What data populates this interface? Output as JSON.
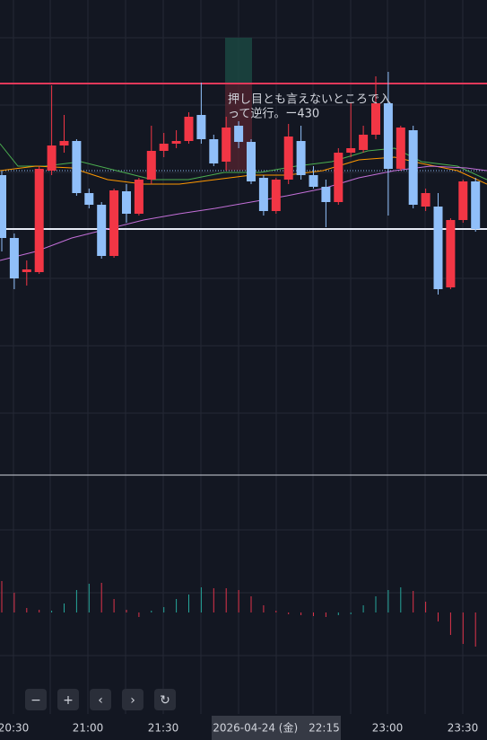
{
  "chart_data": {
    "type": "candlestick",
    "annotation": [
      "押し目とも言えないところで入",
      "って逆行。ー430"
    ],
    "up_color": "#f23645",
    "down_color": "#90bff9",
    "ylim": [
      0,
      530
    ],
    "candles": [
      [
        335,
        340,
        250,
        265
      ],
      [
        265,
        270,
        208,
        220
      ],
      [
        227,
        240,
        212,
        230
      ],
      [
        227,
        345,
        225,
        342
      ],
      [
        340,
        435,
        335,
        368
      ],
      [
        368,
        402,
        360,
        373
      ],
      [
        373,
        375,
        312,
        315
      ],
      [
        315,
        320,
        298,
        302
      ],
      [
        302,
        305,
        242,
        245
      ],
      [
        245,
        320,
        243,
        318
      ],
      [
        317,
        325,
        282,
        292
      ],
      [
        292,
        332,
        290,
        330
      ],
      [
        330,
        390,
        325,
        362
      ],
      [
        362,
        382,
        355,
        370
      ],
      [
        370,
        385,
        365,
        373
      ],
      [
        373,
        405,
        370,
        400
      ],
      [
        402,
        438,
        370,
        375
      ],
      [
        375,
        380,
        345,
        348
      ],
      [
        350,
        400,
        340,
        388
      ],
      [
        390,
        395,
        365,
        372
      ],
      [
        372,
        375,
        325,
        328
      ],
      [
        332,
        335,
        290,
        295
      ],
      [
        295,
        332,
        292,
        330
      ],
      [
        330,
        392,
        325,
        378
      ],
      [
        373,
        390,
        330,
        335
      ],
      [
        335,
        345,
        320,
        322
      ],
      [
        322,
        330,
        277,
        305
      ],
      [
        305,
        365,
        302,
        360
      ],
      [
        360,
        415,
        355,
        365
      ],
      [
        363,
        390,
        360,
        380
      ],
      [
        380,
        445,
        375,
        415
      ],
      [
        415,
        450,
        290,
        342
      ],
      [
        342,
        390,
        340,
        388
      ],
      [
        385,
        390,
        298,
        302
      ],
      [
        300,
        320,
        295,
        315
      ],
      [
        300,
        315,
        202,
        208
      ],
      [
        210,
        287,
        208,
        285
      ],
      [
        285,
        330,
        282,
        328
      ],
      [
        328,
        332,
        272,
        275
      ]
    ],
    "volume": [
      35,
      22,
      5,
      3,
      2,
      10,
      25,
      32,
      33,
      15,
      3,
      -5,
      2,
      6,
      15,
      20,
      28,
      27,
      27,
      25,
      18,
      8,
      2,
      -2,
      -3,
      -4,
      -5,
      -3,
      -2,
      8,
      18,
      25,
      28,
      24,
      12,
      -10,
      -25,
      -35,
      -38
    ],
    "volume_colors": [
      "#e0334a",
      "#e0334a",
      "#e0334a",
      "#e0334a",
      "#26a69a",
      "#26a69a",
      "#26a69a",
      "#26a69a",
      "#e0334a",
      "#e0334a",
      "#e0334a",
      "#e0334a",
      "#26a69a",
      "#26a69a",
      "#26a69a",
      "#26a69a",
      "#26a69a",
      "#e0334a",
      "#e0334a",
      "#e0334a",
      "#e0334a",
      "#e0334a",
      "#e0334a",
      "#e0334a",
      "#e0334a",
      "#e0334a",
      "#e0334a",
      "#26a69a",
      "#26a69a",
      "#26a69a",
      "#26a69a",
      "#26a69a",
      "#26a69a",
      "#e0334a",
      "#e0334a",
      "#e0334a",
      "#e0334a",
      "#e0334a",
      "#e0334a"
    ],
    "time_labels": [
      "20:30",
      "21:00",
      "21:30",
      "23:00",
      "23:30"
    ],
    "crosshair_label": "2026-04-24 (金)　22:15",
    "buttons": [
      "−",
      "+",
      "‹",
      "›",
      "↻"
    ]
  }
}
